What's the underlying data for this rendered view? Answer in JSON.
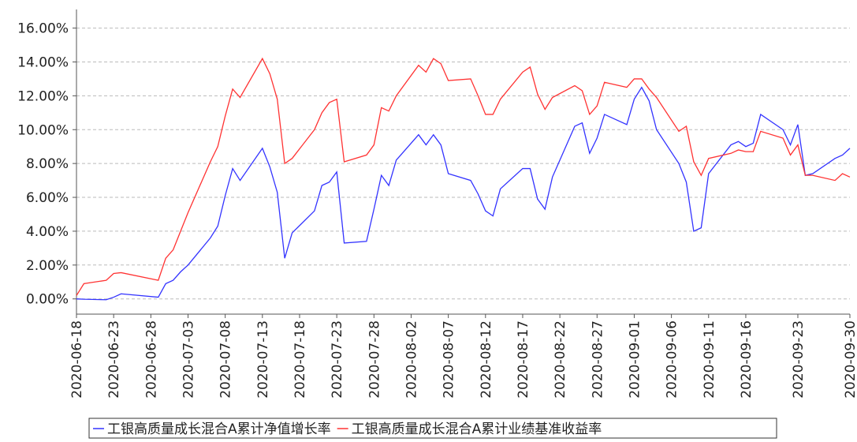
{
  "chart_data": {
    "type": "line",
    "x": [
      "2020-06-18",
      "2020-06-19",
      "2020-06-22",
      "2020-06-23",
      "2020-06-24",
      "2020-06-29",
      "2020-06-30",
      "2020-07-01",
      "2020-07-02",
      "2020-07-03",
      "2020-07-06",
      "2020-07-07",
      "2020-07-08",
      "2020-07-09",
      "2020-07-10",
      "2020-07-13",
      "2020-07-14",
      "2020-07-15",
      "2020-07-16",
      "2020-07-17",
      "2020-07-20",
      "2020-07-21",
      "2020-07-22",
      "2020-07-23",
      "2020-07-24",
      "2020-07-27",
      "2020-07-28",
      "2020-07-29",
      "2020-07-30",
      "2020-07-31",
      "2020-08-03",
      "2020-08-04",
      "2020-08-05",
      "2020-08-06",
      "2020-08-07",
      "2020-08-10",
      "2020-08-11",
      "2020-08-12",
      "2020-08-13",
      "2020-08-14",
      "2020-08-17",
      "2020-08-18",
      "2020-08-19",
      "2020-08-20",
      "2020-08-21",
      "2020-08-24",
      "2020-08-25",
      "2020-08-26",
      "2020-08-27",
      "2020-08-28",
      "2020-08-31",
      "2020-09-01",
      "2020-09-02",
      "2020-09-03",
      "2020-09-04",
      "2020-09-07",
      "2020-09-08",
      "2020-09-09",
      "2020-09-10",
      "2020-09-11",
      "2020-09-14",
      "2020-09-15",
      "2020-09-16",
      "2020-09-17",
      "2020-09-18",
      "2020-09-21",
      "2020-09-22",
      "2020-09-23",
      "2020-09-24",
      "2020-09-25",
      "2020-09-28",
      "2020-09-29",
      "2020-09-30"
    ],
    "series": [
      {
        "name": "工银高质量成长混合A累计净值增长率",
        "color": "#3333ff",
        "values": [
          0.0,
          -0.02,
          -0.05,
          0.1,
          0.3,
          0.1,
          0.9,
          1.1,
          1.6,
          2.0,
          3.6,
          4.3,
          6.1,
          7.7,
          7.0,
          8.9,
          7.8,
          6.3,
          2.4,
          3.9,
          5.2,
          6.7,
          6.9,
          7.5,
          3.3,
          3.4,
          5.3,
          7.3,
          6.7,
          8.2,
          9.7,
          9.1,
          9.7,
          9.1,
          7.4,
          7.0,
          6.2,
          5.2,
          4.9,
          6.5,
          7.7,
          7.7,
          5.9,
          5.3,
          7.2,
          10.2,
          10.4,
          8.6,
          9.5,
          10.9,
          10.3,
          11.8,
          12.5,
          11.7,
          10.0,
          8.0,
          6.9,
          4.0,
          4.2,
          7.4,
          9.1,
          9.3,
          9.0,
          9.2,
          10.9,
          10.0,
          9.1,
          10.3,
          7.3,
          7.4,
          8.3,
          8.5,
          8.9
        ]
      },
      {
        "name": "工银高质量成长混合A累计业绩基准收益率",
        "color": "#ff3333",
        "values": [
          0.2,
          0.9,
          1.1,
          1.5,
          1.55,
          1.1,
          2.4,
          2.9,
          4.0,
          5.1,
          8.1,
          9.0,
          10.8,
          12.4,
          11.9,
          14.2,
          13.3,
          11.8,
          8.0,
          8.3,
          10.0,
          11.0,
          11.6,
          11.8,
          8.1,
          8.5,
          9.1,
          11.3,
          11.1,
          12.0,
          13.8,
          13.4,
          14.2,
          13.9,
          12.9,
          13.0,
          12.0,
          10.9,
          10.9,
          11.8,
          13.4,
          13.7,
          12.1,
          11.2,
          11.9,
          12.6,
          12.3,
          10.9,
          11.4,
          12.8,
          12.5,
          13.0,
          13.0,
          12.4,
          11.9,
          9.9,
          10.2,
          8.1,
          7.3,
          8.3,
          8.6,
          8.8,
          8.7,
          8.7,
          9.9,
          9.5,
          8.5,
          9.1,
          7.3,
          7.3,
          7.0,
          7.4,
          7.2
        ]
      }
    ],
    "xlim": [
      "2020-06-18",
      "2020-09-30"
    ],
    "xticks": [
      "2020-06-18",
      "2020-06-23",
      "2020-06-28",
      "2020-07-03",
      "2020-07-08",
      "2020-07-13",
      "2020-07-18",
      "2020-07-23",
      "2020-07-28",
      "2020-08-02",
      "2020-08-07",
      "2020-08-12",
      "2020-08-17",
      "2020-08-22",
      "2020-08-27",
      "2020-09-01",
      "2020-09-06",
      "2020-09-11",
      "2020-09-16",
      "2020-09-23",
      "2020-09-30"
    ],
    "ylim": [
      -0.9,
      17.1
    ],
    "yticks": [
      {
        "value": 0,
        "label": "0.00%"
      },
      {
        "value": 2,
        "label": "2.00%"
      },
      {
        "value": 4,
        "label": "4.00%"
      },
      {
        "value": 6,
        "label": "6.00%"
      },
      {
        "value": 8,
        "label": "8.00%"
      },
      {
        "value": 10,
        "label": "10.00%"
      },
      {
        "value": 12,
        "label": "12.00%"
      },
      {
        "value": 14,
        "label": "14.00%"
      },
      {
        "value": 16,
        "label": "16.00%"
      }
    ],
    "grid": true
  }
}
